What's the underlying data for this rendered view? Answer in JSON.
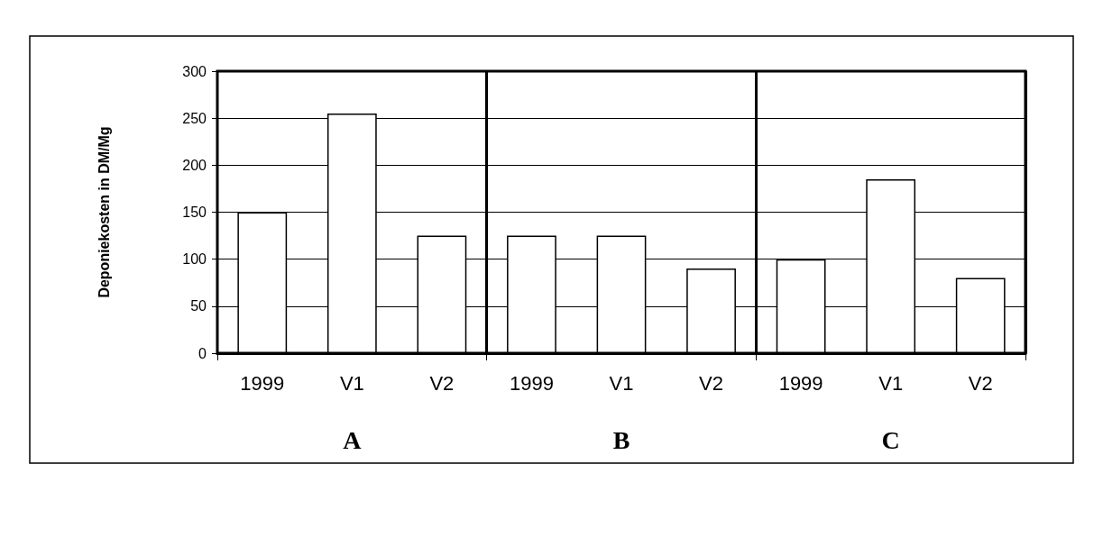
{
  "chart_data": {
    "type": "bar",
    "ylabel": "Deponiekosten in DM/Mg",
    "categories": [
      "1999",
      "V1",
      "V2",
      "1999",
      "V1",
      "V2",
      "1999",
      "V1",
      "V2"
    ],
    "values": [
      150,
      255,
      125,
      125,
      125,
      90,
      100,
      185,
      80
    ],
    "color": "#ffffff",
    "ylim": [
      0,
      300
    ],
    "yticks": [
      0,
      50,
      100,
      150,
      200,
      250,
      300
    ],
    "grid": "y",
    "annotations": [
      "A",
      "B",
      "C"
    ]
  }
}
